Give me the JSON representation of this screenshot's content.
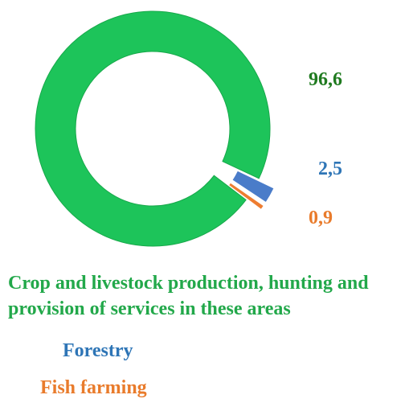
{
  "chart_data": {
    "type": "pie",
    "variant": "donut",
    "title": "",
    "categories": [
      "Crop and livestock production, hunting and provision of services in these areas",
      "Forestry",
      "Fish farming"
    ],
    "values": [
      96.6,
      2.5,
      0.9
    ],
    "value_labels": [
      "96,6",
      "2,5",
      "0,9"
    ],
    "colors": [
      "#1DC45A",
      "#4A7CC9",
      "#EE7D31"
    ],
    "label_colors": [
      "#1F7A1F",
      "#2E75B6",
      "#E97B2B"
    ],
    "legend_position": "bottom",
    "exploded_slices": [
      "Forestry",
      "Fish farming"
    ]
  }
}
